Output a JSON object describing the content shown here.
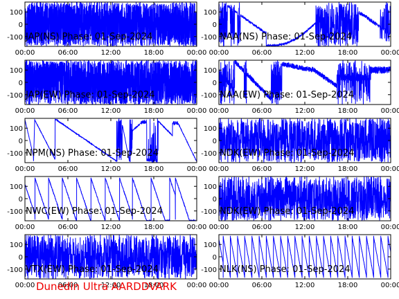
{
  "footer": "Dunedin Ultra AARDDVARK",
  "colors": {
    "trace": "#0000ff",
    "axes": "#000000",
    "footer": "#ee0000",
    "background": "#ffffff"
  },
  "chart_data": [
    {
      "type": "line",
      "title": "JAP(NS) Phase: 01-Sep-2024",
      "ylim": [
        -180,
        180
      ],
      "yticks": [
        "100",
        "0",
        "-100"
      ],
      "xticks": [
        "00:00",
        "06:00",
        "12:00",
        "18:00",
        "00:00"
      ],
      "xlim": [
        "00:00",
        "24:00"
      ],
      "pattern": "saturated"
    },
    {
      "type": "line",
      "title": "NAA(NS) Phase: 01-Sep-2024",
      "ylim": [
        -180,
        180
      ],
      "yticks": [
        "100",
        "0",
        "-100"
      ],
      "xticks": [
        "00:00",
        "06:00",
        "12:00",
        "18:00",
        "00:00"
      ],
      "xlim": [
        "00:00",
        "24:00"
      ],
      "pattern": "naa_ns"
    },
    {
      "type": "line",
      "title": "JAP(EW) Phase: 01-Sep-2024",
      "ylim": [
        -180,
        180
      ],
      "yticks": [
        "100",
        "0",
        "-100"
      ],
      "xticks": [
        "00:00",
        "06:00",
        "12:00",
        "18:00",
        "00:00"
      ],
      "xlim": [
        "00:00",
        "24:00"
      ],
      "pattern": "saturated_spiky"
    },
    {
      "type": "line",
      "title": "NAA(EW) Phase: 01-Sep-2024",
      "ylim": [
        -180,
        180
      ],
      "yticks": [
        "100",
        "0",
        "-100"
      ],
      "xticks": [
        "00:00",
        "06:00",
        "12:00",
        "18:00",
        "00:00"
      ],
      "xlim": [
        "00:00",
        "24:00"
      ],
      "pattern": "naa_ew"
    },
    {
      "type": "line",
      "title": "NPM(NS) Phase: 01-Sep-2024",
      "ylim": [
        -180,
        180
      ],
      "yticks": [
        "100",
        "0",
        "-100"
      ],
      "xticks": [
        "00:00",
        "06:00",
        "12:00",
        "18:00",
        "00:00"
      ],
      "xlim": [
        "00:00",
        "24:00"
      ],
      "pattern": "npm"
    },
    {
      "type": "line",
      "title": "NDK(EW) Phase: 01-Sep-2024",
      "ylim": [
        -180,
        180
      ],
      "yticks": [
        "100",
        "0",
        "-100"
      ],
      "xticks": [
        "00:00",
        "06:00",
        "12:00",
        "18:00",
        "00:00"
      ],
      "xlim": [
        "00:00",
        "24:00"
      ],
      "pattern": "noise"
    },
    {
      "type": "line",
      "title": "NWC(EW) Phase: 01-Sep-2024",
      "ylim": [
        -180,
        180
      ],
      "yticks": [
        "100",
        "0",
        "-100"
      ],
      "xticks": [
        "00:00",
        "06:00",
        "12:00",
        "18:00",
        "00:00"
      ],
      "xlim": [
        "00:00",
        "24:00"
      ],
      "pattern": "nwc"
    },
    {
      "type": "line",
      "title": "NDK(EW) Phase: 01-Sep-2024",
      "ylim": [
        -180,
        180
      ],
      "yticks": [
        "100",
        "0",
        "-100"
      ],
      "xticks": [
        "00:00",
        "06:00",
        "12:00",
        "18:00",
        "00:00"
      ],
      "xlim": [
        "00:00",
        "24:00"
      ],
      "pattern": "noise"
    },
    {
      "type": "line",
      "title": "VTX(EW) Phase: 01-Sep-2024",
      "ylim": [
        -180,
        180
      ],
      "yticks": [
        "100",
        "0",
        "-100"
      ],
      "xticks": [
        "00:00",
        "06:00",
        "12:00",
        "18:00",
        "00:00"
      ],
      "xlim": [
        "00:00",
        "24:00"
      ],
      "pattern": "noise"
    },
    {
      "type": "line",
      "title": "NLK(NS) Phase: 01-Sep-2024",
      "ylim": [
        -180,
        180
      ],
      "yticks": [
        "100",
        "0",
        "-100"
      ],
      "xticks": [
        "00:00",
        "06:00",
        "12:00",
        "18:00",
        "00:00"
      ],
      "xlim": [
        "00:00",
        "24:00"
      ],
      "pattern": "nlk"
    }
  ]
}
